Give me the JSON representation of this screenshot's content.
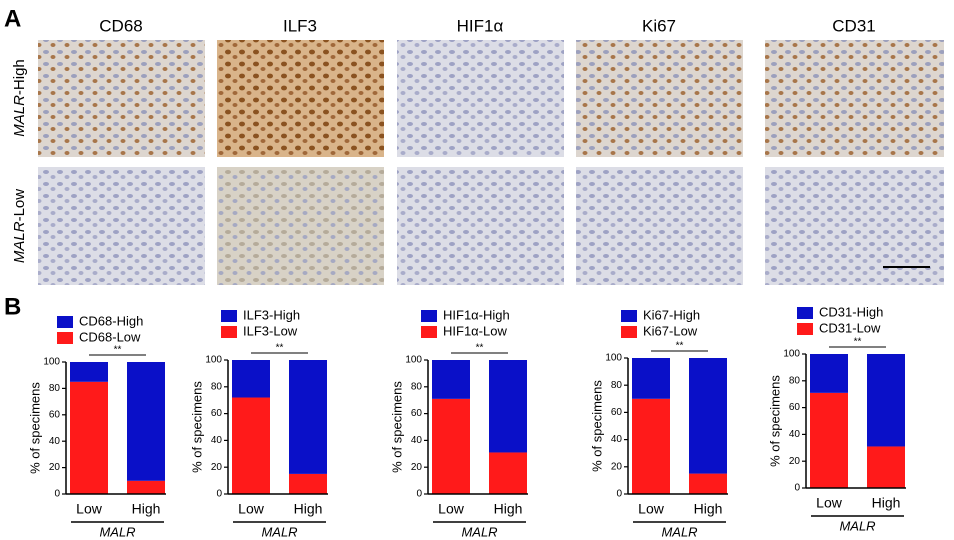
{
  "panel_labels": [
    "A",
    "B"
  ],
  "image_columns": [
    "CD68",
    "ILF3",
    "HIF1α",
    "Ki67",
    "CD31"
  ],
  "image_rows": [
    {
      "gene": "MALR",
      "suffix": "-High"
    },
    {
      "gene": "MALR",
      "suffix": "-Low"
    }
  ],
  "chart_data": [
    {
      "type": "bar",
      "stacked": true,
      "categories": [
        "Low",
        "High"
      ],
      "x_label": "MALR",
      "y_label": "% of specimens",
      "ylim": [
        0,
        100
      ],
      "yticks": [
        0,
        20,
        40,
        60,
        80,
        100
      ],
      "significance": "**",
      "series": [
        {
          "name": "CD68-Low",
          "color": "#ff1a1a",
          "values": [
            85,
            10
          ]
        },
        {
          "name": "CD68-High",
          "color": "#0a10c8",
          "values": [
            15,
            90
          ]
        }
      ]
    },
    {
      "type": "bar",
      "stacked": true,
      "categories": [
        "Low",
        "High"
      ],
      "x_label": "MALR",
      "y_label": "% of specimens",
      "ylim": [
        0,
        100
      ],
      "yticks": [
        0,
        20,
        40,
        60,
        80,
        100
      ],
      "significance": "**",
      "series": [
        {
          "name": "ILF3-Low",
          "color": "#ff1a1a",
          "values": [
            72,
            15
          ]
        },
        {
          "name": "ILF3-High",
          "color": "#0a10c8",
          "values": [
            28,
            85
          ]
        }
      ]
    },
    {
      "type": "bar",
      "stacked": true,
      "categories": [
        "Low",
        "High"
      ],
      "x_label": "MALR",
      "y_label": "% of specimens",
      "ylim": [
        0,
        100
      ],
      "yticks": [
        0,
        20,
        40,
        60,
        80,
        100
      ],
      "significance": "**",
      "series": [
        {
          "name": "HIF1α-Low",
          "color": "#ff1a1a",
          "values": [
            71,
            31
          ]
        },
        {
          "name": "HIF1α-High",
          "color": "#0a10c8",
          "values": [
            29,
            69
          ]
        }
      ]
    },
    {
      "type": "bar",
      "stacked": true,
      "categories": [
        "Low",
        "High"
      ],
      "x_label": "MALR",
      "y_label": "% of specimens",
      "ylim": [
        0,
        100
      ],
      "yticks": [
        0,
        20,
        40,
        60,
        80,
        100
      ],
      "significance": "**",
      "series": [
        {
          "name": "Ki67-Low",
          "color": "#ff1a1a",
          "values": [
            70,
            15
          ]
        },
        {
          "name": "Ki67-High",
          "color": "#0a10c8",
          "values": [
            30,
            85
          ]
        }
      ]
    },
    {
      "type": "bar",
      "stacked": true,
      "categories": [
        "Low",
        "High"
      ],
      "x_label": "MALR",
      "y_label": "% of specimens",
      "ylim": [
        0,
        100
      ],
      "yticks": [
        0,
        20,
        40,
        60,
        80,
        100
      ],
      "significance": "**",
      "series": [
        {
          "name": "CD31-Low",
          "color": "#ff1a1a",
          "values": [
            71,
            31
          ]
        },
        {
          "name": "CD31-High",
          "color": "#0a10c8",
          "values": [
            29,
            69
          ]
        }
      ]
    }
  ]
}
